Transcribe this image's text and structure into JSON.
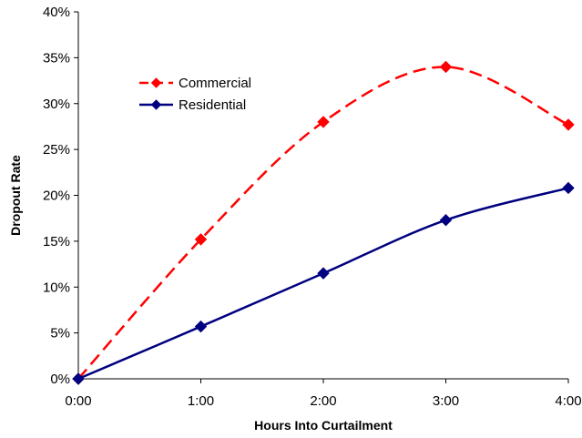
{
  "chart_data": {
    "type": "line",
    "xlabel": "Hours Into Curtailment",
    "ylabel": "Dropout Rate",
    "x": [
      "0:00",
      "1:00",
      "2:00",
      "3:00",
      "4:00"
    ],
    "x_hours": [
      0,
      1,
      2,
      3,
      4
    ],
    "ylim": [
      0,
      40
    ],
    "y_ticks": [
      0,
      5,
      10,
      15,
      20,
      25,
      30,
      35,
      40
    ],
    "y_tick_labels": [
      "0%",
      "5%",
      "10%",
      "15%",
      "20%",
      "25%",
      "30%",
      "35%",
      "40%"
    ],
    "grid": false,
    "legend_position": "top-left",
    "series": [
      {
        "name": "Commercial",
        "color": "#ff0000",
        "line_style": "dashed",
        "marker": "diamond",
        "values": [
          0,
          15.2,
          28,
          34,
          27.7
        ]
      },
      {
        "name": "Residential",
        "color": "#000080",
        "line_style": "solid",
        "marker": "diamond",
        "values": [
          0,
          5.7,
          11.5,
          17.3,
          20.8
        ]
      }
    ]
  }
}
